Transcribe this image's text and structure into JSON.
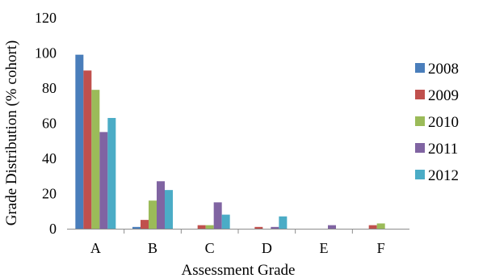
{
  "chart_data": {
    "type": "bar",
    "title": "",
    "xlabel": "Assessment Grade",
    "ylabel": "Grade Distribution (% cohort)",
    "categories": [
      "A",
      "B",
      "C",
      "D",
      "E",
      "F"
    ],
    "ylim": [
      0,
      120
    ],
    "yticks": [
      0,
      20,
      40,
      60,
      80,
      100,
      120
    ],
    "grid": false,
    "legend_position": "right",
    "series": [
      {
        "name": "2008",
        "color": "#4a7ebb",
        "values": [
          99,
          1,
          0,
          0,
          0,
          0
        ]
      },
      {
        "name": "2009",
        "color": "#c0504d",
        "values": [
          90,
          5,
          2,
          1,
          0,
          2
        ]
      },
      {
        "name": "2010",
        "color": "#9bbb59",
        "values": [
          79,
          16,
          2,
          0,
          0,
          3
        ]
      },
      {
        "name": "2011",
        "color": "#8064a2",
        "values": [
          55,
          27,
          15,
          1,
          2,
          0
        ]
      },
      {
        "name": "2012",
        "color": "#4bacc6",
        "values": [
          63,
          22,
          8,
          7,
          0,
          0
        ]
      }
    ]
  }
}
